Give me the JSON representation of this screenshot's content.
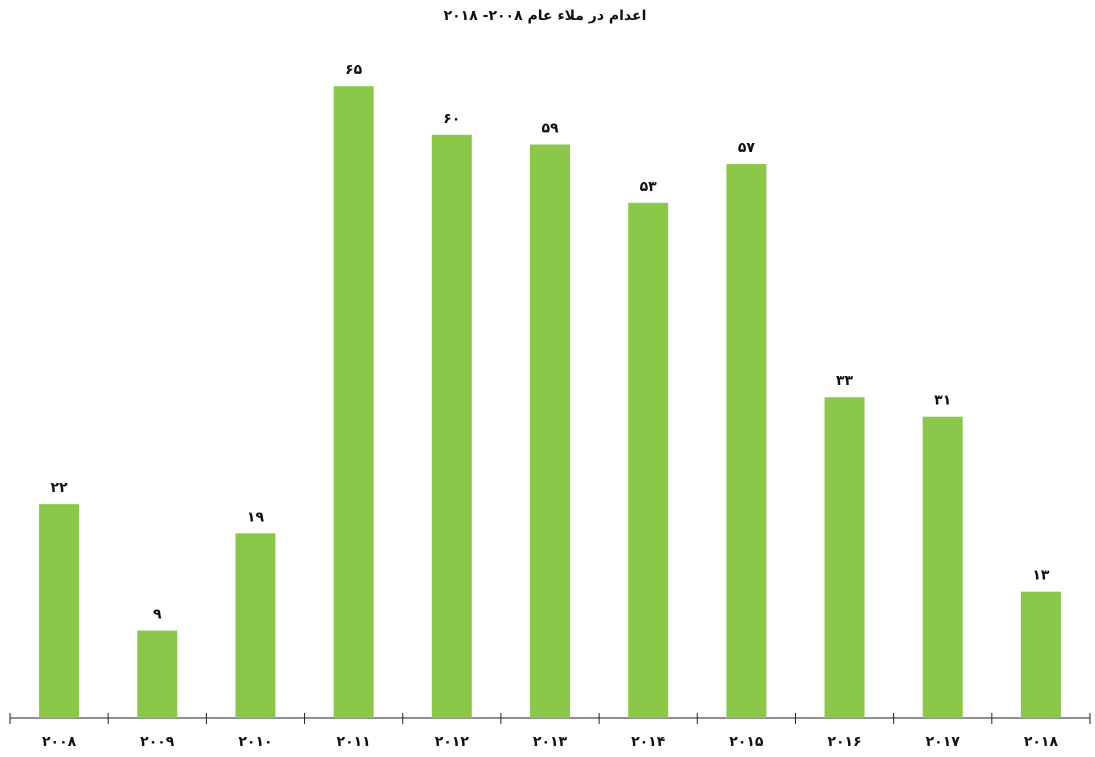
{
  "chart_data": {
    "type": "bar",
    "title": "اعدام در ملاء عام ۲۰۰۸- ۲۰۱۸",
    "categories": [
      "۲۰۰۸",
      "۲۰۰۹",
      "۲۰۱۰",
      "۲۰۱۱",
      "۲۰۱۲",
      "۲۰۱۳",
      "۲۰۱۴",
      "۲۰۱۵",
      "۲۰۱۶",
      "۲۰۱۷",
      "۲۰۱۸"
    ],
    "values": [
      22,
      9,
      19,
      65,
      60,
      59,
      53,
      57,
      33,
      31,
      13
    ],
    "value_labels": [
      "۲۲",
      "۹",
      "۱۹",
      "۶۵",
      "۶۰",
      "۵۹",
      "۵۳",
      "۵۷",
      "۳۳",
      "۳۱",
      "۱۳"
    ],
    "color": "#8bc84a"
  }
}
